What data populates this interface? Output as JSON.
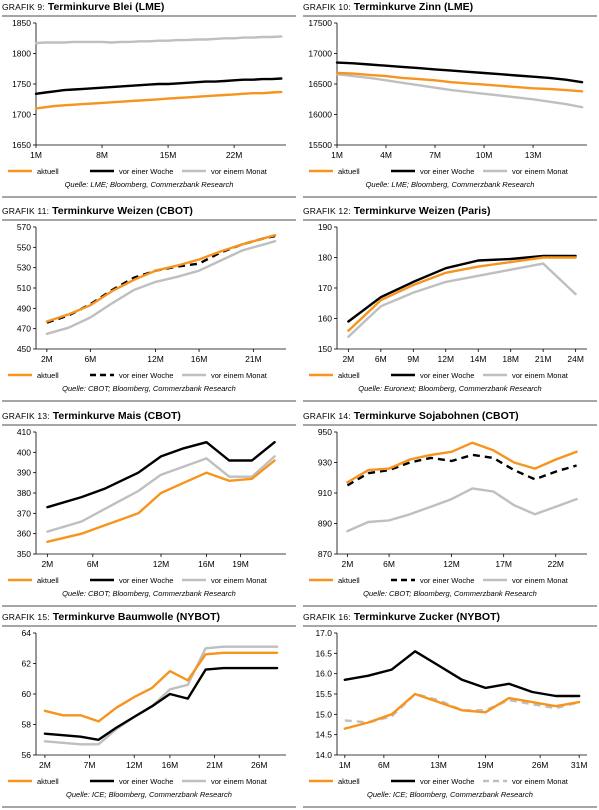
{
  "legend_labels": [
    "aktuell",
    "vor einer Woche",
    "vor einem Monat"
  ],
  "colors": {
    "aktuell": "#f7941d",
    "woche": "#000000",
    "monat": "#bfbfbf",
    "rule": "#a6a6a6"
  },
  "chart_data": [
    {
      "type": "line",
      "label_prefix": "GRAFIK 9:",
      "title": "Terminkurve Blei (LME)",
      "source": "Quelle: LME; Bloomberg, Commerzbank Research",
      "x": [
        1,
        2,
        3,
        4,
        5,
        6,
        7,
        8,
        9,
        10,
        11,
        12,
        13,
        14,
        15,
        16,
        17,
        18,
        19,
        20,
        21,
        22,
        23,
        24,
        25,
        26,
        27
      ],
      "xticks": [
        "1M",
        "8M",
        "15M",
        "22M"
      ],
      "xtick_pos": [
        1,
        8,
        15,
        22
      ],
      "xlim": [
        1,
        27.5
      ],
      "ylim": [
        1650,
        1850
      ],
      "yticks": [
        1650,
        1700,
        1750,
        1800,
        1850
      ],
      "series": [
        {
          "name": "aktuell",
          "style": "solid",
          "values": [
            1710,
            1712,
            1714,
            1715,
            1716,
            1717,
            1718,
            1719,
            1720,
            1721,
            1722,
            1723,
            1724,
            1725,
            1726,
            1727,
            1728,
            1729,
            1730,
            1731,
            1732,
            1733,
            1734,
            1735,
            1735,
            1736,
            1737
          ]
        },
        {
          "name": "vor einer Woche",
          "style": "solid",
          "values": [
            1734,
            1736,
            1738,
            1740,
            1741,
            1742,
            1743,
            1744,
            1745,
            1746,
            1747,
            1748,
            1749,
            1750,
            1750,
            1751,
            1752,
            1753,
            1754,
            1754,
            1755,
            1756,
            1757,
            1757,
            1758,
            1758,
            1759
          ]
        },
        {
          "name": "vor einem Monat",
          "style": "solid",
          "values": [
            1817,
            1818,
            1818,
            1818,
            1819,
            1819,
            1819,
            1819,
            1818,
            1819,
            1819,
            1820,
            1820,
            1821,
            1821,
            1822,
            1822,
            1823,
            1823,
            1824,
            1825,
            1825,
            1826,
            1826,
            1827,
            1827,
            1828
          ]
        }
      ]
    },
    {
      "type": "line",
      "label_prefix": "GRAFIK 10:",
      "title": "Terminkurve Zinn (LME)",
      "source": "Quelle: LME; Bloomberg, Commerzbank Research",
      "x": [
        1,
        2,
        3,
        4,
        5,
        6,
        7,
        8,
        9,
        10,
        11,
        12,
        13,
        14,
        15,
        16
      ],
      "xticks": [
        "1M",
        "4M",
        "7M",
        "10M",
        "13M"
      ],
      "xtick_pos": [
        1,
        4,
        7,
        10,
        13
      ],
      "xlim": [
        1,
        16.3
      ],
      "ylim": [
        15500,
        17500
      ],
      "yticks": [
        15500,
        16000,
        16500,
        17000,
        17500
      ],
      "series": [
        {
          "name": "aktuell",
          "style": "solid",
          "values": [
            16680,
            16670,
            16650,
            16630,
            16600,
            16580,
            16560,
            16530,
            16510,
            16490,
            16470,
            16450,
            16430,
            16420,
            16400,
            16380
          ]
        },
        {
          "name": "vor einer Woche",
          "style": "solid",
          "values": [
            16850,
            16840,
            16820,
            16800,
            16780,
            16760,
            16740,
            16720,
            16700,
            16680,
            16660,
            16640,
            16620,
            16600,
            16570,
            16530
          ]
        },
        {
          "name": "vor einem Monat",
          "style": "solid",
          "values": [
            16660,
            16630,
            16600,
            16560,
            16520,
            16480,
            16440,
            16400,
            16370,
            16340,
            16310,
            16280,
            16250,
            16210,
            16170,
            16120
          ]
        }
      ]
    },
    {
      "type": "line",
      "label_prefix": "GRAFIK 11:",
      "title": "Terminkurve Weizen (CBOT)",
      "source": "Quelle: CBOT; Bloomberg, Commerzbank Research",
      "x": [
        2,
        4,
        6,
        8,
        10,
        12,
        14,
        16,
        18,
        20,
        22,
        23
      ],
      "xticks": [
        "2M",
        "6M",
        "12M",
        "16M",
        "21M"
      ],
      "xtick_pos": [
        2,
        6,
        12,
        16,
        21
      ],
      "xlim": [
        1,
        24
      ],
      "ylim": [
        450,
        570
      ],
      "yticks": [
        450,
        470,
        490,
        510,
        530,
        550,
        570
      ],
      "series": [
        {
          "name": "aktuell",
          "style": "solid",
          "values": [
            477,
            484,
            493,
            507,
            518,
            527,
            532,
            538,
            546,
            553,
            559,
            562
          ]
        },
        {
          "name": "vor einer Woche",
          "style": "dashed",
          "values": [
            476,
            483,
            494,
            508,
            520,
            527,
            531,
            534,
            545,
            553,
            559,
            561
          ]
        },
        {
          "name": "vor einem Monat",
          "style": "solid",
          "values": [
            465,
            471,
            481,
            495,
            508,
            516,
            521,
            527,
            537,
            547,
            553,
            556
          ]
        }
      ]
    },
    {
      "type": "line",
      "label_prefix": "GRAFIK 12:",
      "title": "Terminkurve Weizen (Paris)",
      "source": "Quelle: Euronext; Bloomberg, Commerzbank Research",
      "x": [
        1,
        2,
        3,
        4,
        5,
        6,
        7,
        8
      ],
      "xticks": [
        "2M",
        "6M",
        "9M",
        "12M",
        "14M",
        "18M",
        "21M",
        "24M"
      ],
      "xtick_pos": [
        1,
        2,
        3,
        4,
        5,
        6,
        7,
        8
      ],
      "xlim": [
        0.65,
        8.35
      ],
      "ylim": [
        150,
        190
      ],
      "yticks": [
        150,
        160,
        170,
        180,
        190
      ],
      "series": [
        {
          "name": "aktuell",
          "style": "solid",
          "values": [
            156,
            166,
            171,
            175,
            177,
            178.5,
            180,
            180
          ]
        },
        {
          "name": "vor einer Woche",
          "style": "solid",
          "values": [
            159,
            167,
            172,
            176.5,
            179,
            179.5,
            180.5,
            180.5
          ]
        },
        {
          "name": "vor einem Monat",
          "style": "solid",
          "values": [
            154,
            164,
            168.5,
            172,
            174,
            176,
            178,
            168
          ]
        }
      ]
    },
    {
      "type": "line",
      "label_prefix": "GRAFIK 13:",
      "title": "Terminkurve Mais (CBOT)",
      "source": "Quelle: CBOT; Bloomberg, Commerzbank Research",
      "x": [
        2,
        5,
        7,
        10,
        12,
        14,
        16,
        18,
        20,
        22
      ],
      "xticks": [
        "2M",
        "6M",
        "12M",
        "16M",
        "19M"
      ],
      "xtick_pos": [
        2,
        6,
        12,
        16,
        19
      ],
      "xlim": [
        1,
        23
      ],
      "ylim": [
        350,
        410
      ],
      "yticks": [
        350,
        360,
        370,
        380,
        390,
        400,
        410
      ],
      "series": [
        {
          "name": "aktuell",
          "style": "solid",
          "values": [
            356,
            360,
            364,
            370,
            380,
            385,
            390,
            386,
            387,
            396
          ]
        },
        {
          "name": "vor einer Woche",
          "style": "solid",
          "values": [
            373,
            378,
            382,
            390,
            398,
            402,
            405,
            396,
            396,
            405
          ]
        },
        {
          "name": "vor einem Monat",
          "style": "solid",
          "values": [
            361,
            366,
            372,
            381,
            389,
            393,
            397,
            388,
            388,
            398
          ]
        }
      ]
    },
    {
      "type": "line",
      "label_prefix": "GRAFIK 14:",
      "title": "Terminkurve Sojabohnen (CBOT)",
      "source": "Quelle: CBOT; Bloomberg, Commerzbank Research",
      "x": [
        2,
        4,
        6,
        8,
        10,
        12,
        14,
        16,
        18,
        20,
        22,
        24
      ],
      "xticks": [
        "2M",
        "6M",
        "12M",
        "17M",
        "22M"
      ],
      "xtick_pos": [
        2,
        6,
        12,
        17,
        22
      ],
      "xlim": [
        1,
        25
      ],
      "ylim": [
        870,
        950
      ],
      "yticks": [
        870,
        890,
        910,
        930,
        950
      ],
      "series": [
        {
          "name": "aktuell",
          "style": "solid",
          "values": [
            917,
            925,
            926,
            932,
            935,
            937,
            943,
            938,
            930,
            926,
            932,
            937
          ]
        },
        {
          "name": "vor einer Woche",
          "style": "dashed",
          "values": [
            915,
            923,
            925,
            930,
            933,
            931,
            935,
            933,
            925,
            919,
            924,
            928
          ]
        },
        {
          "name": "vor einem Monat",
          "style": "solid",
          "values": [
            885,
            891,
            892,
            896,
            901,
            906,
            913,
            911,
            902,
            896,
            901,
            906
          ]
        }
      ]
    },
    {
      "type": "line",
      "label_prefix": "GRAFIK 15:",
      "title": "Terminkurve Baumwolle (NYBOT)",
      "source": "Quelle: ICE; Bloomberg, Commerzbank Research",
      "x": [
        2,
        4,
        6,
        8,
        10,
        12,
        14,
        16,
        18,
        20,
        22,
        24,
        26,
        28
      ],
      "xticks": [
        "2M",
        "7M",
        "12M",
        "16M",
        "21M",
        "26M"
      ],
      "xtick_pos": [
        2,
        7,
        12,
        16,
        21,
        26
      ],
      "xlim": [
        1,
        29
      ],
      "ylim": [
        56,
        64
      ],
      "yticks": [
        56,
        58,
        60,
        62,
        64
      ],
      "series": [
        {
          "name": "aktuell",
          "style": "solid",
          "values": [
            58.9,
            58.6,
            58.6,
            58.2,
            59.1,
            59.8,
            60.4,
            61.5,
            60.9,
            62.6,
            62.7,
            62.7,
            62.7,
            62.7
          ]
        },
        {
          "name": "vor einer Woche",
          "style": "solid",
          "values": [
            57.4,
            57.3,
            57.2,
            57.0,
            57.8,
            58.5,
            59.2,
            60.0,
            59.7,
            61.6,
            61.7,
            61.7,
            61.7,
            61.7
          ]
        },
        {
          "name": "vor einem Monat",
          "style": "solid",
          "values": [
            56.9,
            56.8,
            56.7,
            56.7,
            57.7,
            58.5,
            59.2,
            60.3,
            60.6,
            63.0,
            63.1,
            63.1,
            63.1,
            63.1
          ]
        }
      ]
    },
    {
      "type": "line",
      "label_prefix": "GRAFIK 16:",
      "title": "Terminkurve Zucker (NYBOT)",
      "source": "Quelle: ICE; Bloomberg, Commerzbank Research",
      "x": [
        1,
        4,
        7,
        10,
        13,
        16,
        19,
        22,
        25,
        28,
        31
      ],
      "xticks": [
        "1M",
        "6M",
        "13M",
        "19M",
        "26M",
        "31M"
      ],
      "xtick_pos": [
        1,
        6,
        13,
        19,
        26,
        31
      ],
      "xlim": [
        0,
        32
      ],
      "ylim": [
        14.0,
        17.0
      ],
      "yticks": [
        14.0,
        14.5,
        15.0,
        15.5,
        16.0,
        16.5,
        17.0
      ],
      "series": [
        {
          "name": "aktuell",
          "style": "solid",
          "values": [
            14.65,
            14.8,
            15.0,
            15.5,
            15.3,
            15.1,
            15.05,
            15.4,
            15.3,
            15.2,
            15.3
          ]
        },
        {
          "name": "vor einer Woche",
          "style": "solid",
          "values": [
            15.85,
            15.95,
            16.1,
            16.55,
            16.2,
            15.85,
            15.65,
            15.75,
            15.55,
            15.45,
            15.45
          ]
        },
        {
          "name": "vor einem Monat",
          "style": "dashed",
          "values": [
            14.85,
            14.8,
            14.95,
            15.5,
            15.35,
            15.1,
            15.1,
            15.35,
            15.25,
            15.15,
            15.3
          ]
        }
      ]
    }
  ]
}
